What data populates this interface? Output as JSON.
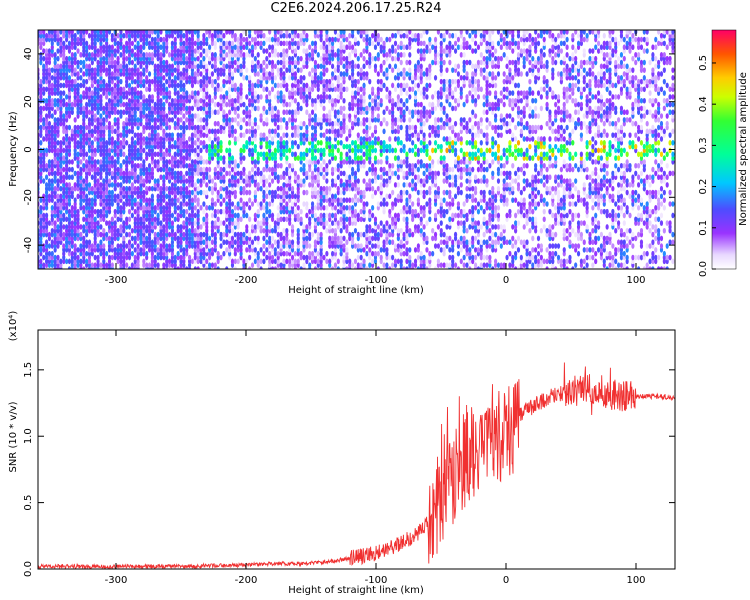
{
  "title": "C2E6.2024.206.17.25.R24",
  "colors": {
    "snr_line": "#f03030",
    "background": "#ffffff"
  },
  "chart_data": [
    {
      "type": "heatmap",
      "xlabel": "Height of straight line (km)",
      "ylabel": "Frequency (Hz)",
      "xlim": [
        -360,
        130
      ],
      "ylim": [
        -50,
        50
      ],
      "xticks": [
        -300,
        -200,
        -100,
        0,
        100
      ],
      "yticks": [
        -40,
        -20,
        0,
        20,
        40
      ],
      "colorbar": {
        "label": "Normalized spectral amplitude",
        "range": [
          0.0,
          0.58
        ],
        "ticks": [
          "0.0",
          "0.1",
          "0.2",
          "0.3",
          "0.4",
          "0.5"
        ],
        "colormap": "rainbow"
      },
      "signal_band": {
        "x_start": -230,
        "frequency_center": 0,
        "notes": "strong narrow band near 0 Hz from about -230 km to the right edge, amplitude increasing to about 0.4-0.5 near 0-100 km"
      }
    },
    {
      "type": "line",
      "xlabel": "Height of straight line (km)",
      "ylabel": "SNR (10 * v/v)",
      "multiplier_label": "(x10⁴)",
      "xlim": [
        -360,
        130
      ],
      "ylim": [
        0,
        1.8
      ],
      "xticks": [
        -300,
        -200,
        -100,
        0,
        100
      ],
      "yticks": [
        "0.0",
        "0.5",
        "1.0",
        "1.5"
      ],
      "series": [
        {
          "x": [
            -360,
            -300,
            -250,
            -200,
            -180,
            -160,
            -140,
            -120,
            -110,
            -100,
            -90,
            -80,
            -70,
            -60,
            -50,
            -45,
            -40,
            -35,
            -30,
            -25,
            -20,
            -15,
            -10,
            -5,
            0,
            5,
            10,
            15,
            20,
            25,
            30,
            35,
            40,
            50,
            60,
            70,
            80,
            90,
            100,
            110,
            120,
            130
          ],
          "y": [
            0.02,
            0.02,
            0.02,
            0.03,
            0.04,
            0.04,
            0.05,
            0.08,
            0.1,
            0.12,
            0.15,
            0.2,
            0.25,
            0.35,
            0.5,
            0.6,
            0.7,
            0.75,
            0.8,
            0.85,
            0.8,
            0.9,
            0.95,
            1.0,
            1.02,
            1.05,
            1.15,
            1.2,
            1.22,
            1.25,
            1.27,
            1.3,
            1.32,
            1.33,
            1.35,
            1.35,
            1.32,
            1.3,
            1.3,
            1.3,
            1.3,
            1.29
          ]
        }
      ]
    }
  ]
}
